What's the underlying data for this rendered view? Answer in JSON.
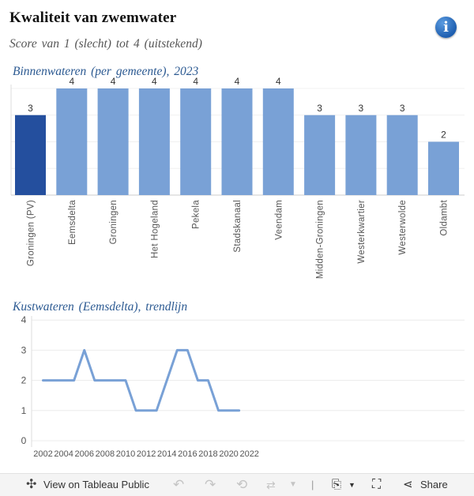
{
  "title": "Kwaliteit van zwemwater",
  "subtitle": "Score van 1 (slecht) tot 4 (uitstekend)",
  "info_icon": "info-icon",
  "colors": {
    "bar": "#79a1d6",
    "highlight": "#244f9e",
    "line": "#79a1d6",
    "section": "#2c5a92"
  },
  "chart_data": [
    {
      "type": "bar",
      "title": "Binnenwateren (per gemeente), 2023",
      "categories": [
        "Groningen (PV)",
        "Eemsdelta",
        "Groningen",
        "Het Hogeland",
        "Pekela",
        "Stadskanaal",
        "Veendam",
        "Midden-Groningen",
        "Westerkwartier",
        "Westerwolde",
        "Oldambt"
      ],
      "values": [
        3,
        4,
        4,
        4,
        4,
        4,
        4,
        3,
        3,
        3,
        2
      ],
      "highlight": "Groningen (PV)",
      "ylim": [
        0,
        4
      ],
      "xlabel": "",
      "ylabel": ""
    },
    {
      "type": "line",
      "title": "Kustwateren (Eemsdelta), trendlijn",
      "x": [
        2002,
        2003,
        2004,
        2005,
        2006,
        2007,
        2008,
        2009,
        2010,
        2011,
        2012,
        2013,
        2014,
        2015,
        2016,
        2017,
        2018,
        2019,
        2020,
        2021,
        2022
      ],
      "values": [
        2,
        2,
        2,
        2,
        3,
        2,
        2,
        2,
        2,
        1,
        1,
        1,
        2,
        3,
        3,
        2,
        2,
        1,
        1,
        1,
        null
      ],
      "xticks": [
        2002,
        2004,
        2006,
        2008,
        2010,
        2012,
        2014,
        2016,
        2018,
        2020,
        2022
      ],
      "yticks": [
        0,
        1,
        2,
        3,
        4
      ],
      "ylim": [
        0,
        4
      ],
      "xlabel": "",
      "ylabel": ""
    }
  ],
  "toolbar": {
    "view_label": "View on Tableau Public",
    "share_label": "Share",
    "view_icon": "tableau-icon",
    "undo_icon": "undo-icon",
    "redo_icon": "redo-icon",
    "revert_icon": "revert-icon",
    "refresh_icon": "refresh-icon",
    "download_icon": "download-icon",
    "fullscreen_icon": "fullscreen-icon",
    "share_icon": "share-icon"
  }
}
